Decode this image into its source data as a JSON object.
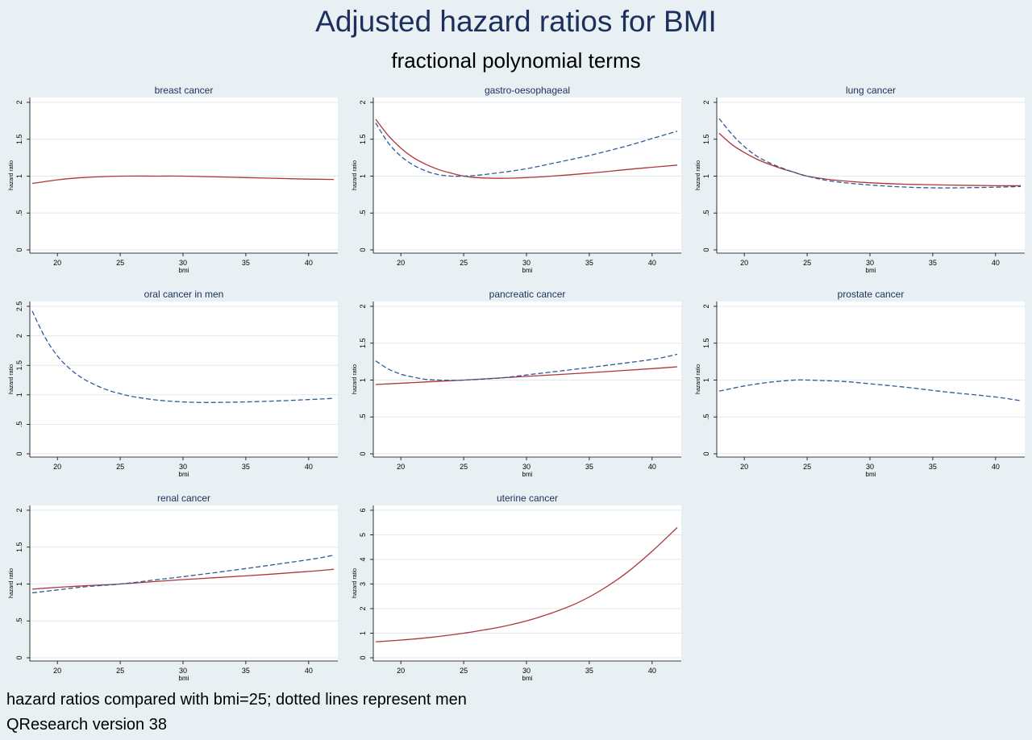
{
  "title": "Adjusted hazard ratios for BMI",
  "subtitle": "fractional polynomial terms",
  "footnote": "hazard ratios compared with bmi=25; dotted lines represent men",
  "source": "QResearch version 38",
  "colors": {
    "women": "#b0343c",
    "men": "#2f5a96",
    "grid": "#e3e8ea",
    "panel_title": "#1d2f5c"
  },
  "chart_data": [
    {
      "type": "line",
      "title": "breast cancer",
      "xlabel": "bmi",
      "ylabel": "hazard ratio",
      "xlim": [
        18,
        42
      ],
      "xticks": [
        20,
        25,
        30,
        35,
        40
      ],
      "ylim": [
        0,
        2
      ],
      "yticks": [
        0,
        0.5,
        1,
        1.5,
        2
      ],
      "ytick_labels": [
        "0",
        ".5",
        "1",
        "1.5",
        "2"
      ],
      "series": [
        {
          "style": "solid",
          "x": [
            18,
            20,
            22,
            25,
            28,
            30,
            35,
            40,
            42
          ],
          "y": [
            0.9,
            0.95,
            0.98,
            1.0,
            1.0,
            1.0,
            0.98,
            0.96,
            0.955
          ]
        }
      ]
    },
    {
      "type": "line",
      "title": "gastro-oesophageal",
      "xlabel": "bmi",
      "ylabel": "hazard ratio",
      "xlim": [
        18,
        42
      ],
      "xticks": [
        20,
        25,
        30,
        35,
        40
      ],
      "ylim": [
        0,
        2
      ],
      "yticks": [
        0,
        0.5,
        1,
        1.5,
        2
      ],
      "ytick_labels": [
        "0",
        ".5",
        "1",
        "1.5",
        "2"
      ],
      "series": [
        {
          "style": "solid",
          "x": [
            18,
            19,
            20,
            21,
            22,
            23,
            24,
            25,
            26,
            28,
            30,
            32,
            35,
            38,
            40,
            42
          ],
          "y": [
            1.77,
            1.55,
            1.38,
            1.25,
            1.16,
            1.09,
            1.04,
            1.0,
            0.98,
            0.97,
            0.98,
            1.0,
            1.04,
            1.09,
            1.12,
            1.15
          ]
        },
        {
          "style": "dashed",
          "x": [
            18,
            19,
            20,
            21,
            22,
            23,
            24,
            25,
            26,
            28,
            30,
            32,
            35,
            38,
            40,
            42
          ],
          "y": [
            1.72,
            1.45,
            1.27,
            1.15,
            1.07,
            1.02,
            1.0,
            1.0,
            1.01,
            1.05,
            1.1,
            1.17,
            1.28,
            1.41,
            1.51,
            1.61
          ]
        }
      ]
    },
    {
      "type": "line",
      "title": "lung cancer",
      "xlabel": "bmi",
      "ylabel": "hazard ratio",
      "xlim": [
        18,
        42
      ],
      "xticks": [
        20,
        25,
        30,
        35,
        40
      ],
      "ylim": [
        0,
        2
      ],
      "yticks": [
        0,
        0.5,
        1,
        1.5,
        2
      ],
      "ytick_labels": [
        "0",
        ".5",
        "1",
        "1.5",
        "2"
      ],
      "series": [
        {
          "style": "solid",
          "x": [
            18,
            19,
            20,
            21,
            22,
            23,
            24,
            25,
            27,
            30,
            33,
            36,
            40,
            42
          ],
          "y": [
            1.58,
            1.43,
            1.32,
            1.23,
            1.16,
            1.1,
            1.05,
            1.0,
            0.95,
            0.91,
            0.89,
            0.88,
            0.87,
            0.87
          ]
        },
        {
          "style": "dashed",
          "x": [
            18,
            19,
            20,
            21,
            22,
            23,
            24,
            25,
            27,
            30,
            33,
            36,
            40,
            42
          ],
          "y": [
            1.78,
            1.57,
            1.4,
            1.27,
            1.18,
            1.11,
            1.05,
            1.0,
            0.93,
            0.88,
            0.85,
            0.84,
            0.85,
            0.86
          ]
        }
      ]
    },
    {
      "type": "line",
      "title": "oral cancer in men",
      "xlabel": "bmi",
      "ylabel": "hazard ratio",
      "xlim": [
        18,
        42
      ],
      "xticks": [
        20,
        25,
        30,
        35,
        40
      ],
      "ylim": [
        0,
        2.5
      ],
      "yticks": [
        0,
        0.5,
        1,
        1.5,
        2,
        2.5
      ],
      "ytick_labels": [
        "0",
        ".5",
        "1",
        "1.5",
        "2",
        "2.5"
      ],
      "series": [
        {
          "style": "dashed",
          "x": [
            18,
            19,
            20,
            21,
            22,
            23,
            24,
            25,
            26,
            28,
            30,
            32,
            35,
            38,
            40,
            42
          ],
          "y": [
            2.42,
            1.98,
            1.66,
            1.44,
            1.28,
            1.17,
            1.08,
            1.02,
            0.97,
            0.91,
            0.88,
            0.87,
            0.88,
            0.9,
            0.92,
            0.94
          ]
        }
      ]
    },
    {
      "type": "line",
      "title": "pancreatic cancer",
      "xlabel": "bmi",
      "ylabel": "hazard ratio",
      "xlim": [
        18,
        42
      ],
      "xticks": [
        20,
        25,
        30,
        35,
        40
      ],
      "ylim": [
        0,
        2
      ],
      "yticks": [
        0,
        0.5,
        1,
        1.5,
        2
      ],
      "ytick_labels": [
        "0",
        ".5",
        "1",
        "1.5",
        "2"
      ],
      "series": [
        {
          "style": "solid",
          "x": [
            18,
            22,
            25,
            30,
            35,
            40,
            42
          ],
          "y": [
            0.94,
            0.975,
            1.0,
            1.05,
            1.1,
            1.155,
            1.18
          ]
        },
        {
          "style": "dashed",
          "x": [
            18,
            19,
            20,
            21,
            22,
            23,
            25,
            28,
            30,
            35,
            40,
            42
          ],
          "y": [
            1.26,
            1.15,
            1.08,
            1.04,
            1.01,
            1.0,
            1.0,
            1.03,
            1.07,
            1.17,
            1.28,
            1.35
          ]
        }
      ]
    },
    {
      "type": "line",
      "title": "prostate cancer",
      "xlabel": "bmi",
      "ylabel": "hazard ratio",
      "xlim": [
        18,
        42
      ],
      "xticks": [
        20,
        25,
        30,
        35,
        40
      ],
      "ylim": [
        0,
        2
      ],
      "yticks": [
        0,
        0.5,
        1,
        1.5,
        2
      ],
      "ytick_labels": [
        "0",
        ".5",
        "1",
        "1.5",
        "2"
      ],
      "series": [
        {
          "style": "dashed",
          "x": [
            18,
            20,
            22,
            24,
            25,
            26,
            28,
            30,
            33,
            36,
            40,
            42
          ],
          "y": [
            0.85,
            0.92,
            0.97,
            1.0,
            1.0,
            0.995,
            0.98,
            0.95,
            0.9,
            0.84,
            0.77,
            0.72
          ]
        }
      ]
    },
    {
      "type": "line",
      "title": "renal cancer",
      "xlabel": "bmi",
      "ylabel": "hazard ratio",
      "xlim": [
        18,
        42
      ],
      "xticks": [
        20,
        25,
        30,
        35,
        40
      ],
      "ylim": [
        0,
        2
      ],
      "yticks": [
        0,
        0.5,
        1,
        1.5,
        2
      ],
      "ytick_labels": [
        "0",
        ".5",
        "1",
        "1.5",
        "2"
      ],
      "series": [
        {
          "style": "solid",
          "x": [
            18,
            20,
            22,
            25,
            30,
            35,
            40,
            42
          ],
          "y": [
            0.93,
            0.955,
            0.975,
            1.0,
            1.06,
            1.11,
            1.17,
            1.2
          ]
        },
        {
          "style": "dashed",
          "x": [
            18,
            20,
            22,
            25,
            28,
            30,
            35,
            40,
            42
          ],
          "y": [
            0.88,
            0.92,
            0.96,
            1.0,
            1.06,
            1.1,
            1.21,
            1.33,
            1.39
          ]
        }
      ]
    },
    {
      "type": "line",
      "title": "uterine cancer",
      "xlabel": "bmi",
      "ylabel": "hazard ratio",
      "xlim": [
        18,
        42
      ],
      "xticks": [
        20,
        25,
        30,
        35,
        40
      ],
      "ylim": [
        0,
        6
      ],
      "yticks": [
        0,
        1,
        2,
        3,
        4,
        5,
        6
      ],
      "ytick_labels": [
        "0",
        "1",
        "2",
        "3",
        "4",
        "5",
        "6"
      ],
      "series": [
        {
          "style": "solid",
          "x": [
            18,
            20,
            22,
            24,
            25,
            26,
            28,
            30,
            32,
            34,
            36,
            38,
            40,
            42
          ],
          "y": [
            0.65,
            0.72,
            0.81,
            0.93,
            1.0,
            1.08,
            1.26,
            1.5,
            1.82,
            2.22,
            2.77,
            3.47,
            4.33,
            5.3
          ]
        }
      ]
    }
  ]
}
